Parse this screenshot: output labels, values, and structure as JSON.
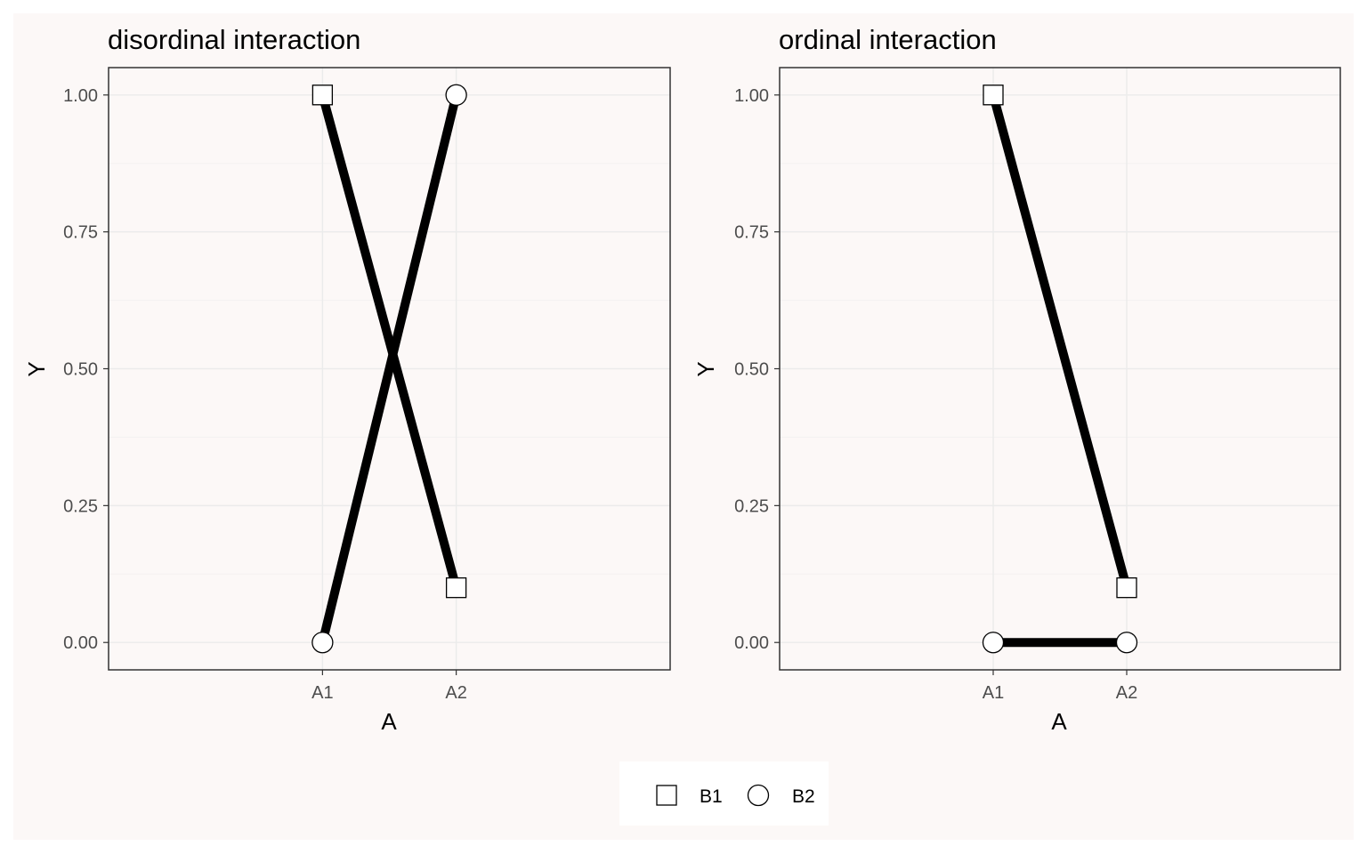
{
  "chart_data": [
    {
      "type": "line",
      "title": "disordinal interaction",
      "xlabel": "A",
      "ylabel": "Y",
      "categories": [
        "A1",
        "A2"
      ],
      "ylim": [
        -0.05,
        1.05
      ],
      "yticks": [
        0,
        0.25,
        0.5,
        0.75,
        1
      ],
      "ytick_labels": [
        "0.00",
        "0.25",
        "0.50",
        "0.75",
        "1.00"
      ],
      "grid": true,
      "series": [
        {
          "name": "B1",
          "shape": "square",
          "values": [
            1.0,
            0.1
          ]
        },
        {
          "name": "B2",
          "shape": "circle",
          "values": [
            0.0,
            1.0
          ]
        }
      ]
    },
    {
      "type": "line",
      "title": "ordinal interaction",
      "xlabel": "A",
      "ylabel": "Y",
      "categories": [
        "A1",
        "A2"
      ],
      "ylim": [
        -0.05,
        1.05
      ],
      "yticks": [
        0,
        0.25,
        0.5,
        0.75,
        1
      ],
      "ytick_labels": [
        "0.00",
        "0.25",
        "0.50",
        "0.75",
        "1.00"
      ],
      "grid": true,
      "series": [
        {
          "name": "B1",
          "shape": "square",
          "values": [
            1.0,
            0.1
          ]
        },
        {
          "name": "B2",
          "shape": "circle",
          "values": [
            0.0,
            0.0
          ]
        }
      ]
    }
  ],
  "legend": {
    "placement": "bottom",
    "items": [
      {
        "label": "B1",
        "shape": "square"
      },
      {
        "label": "B2",
        "shape": "circle"
      }
    ]
  },
  "colors": {
    "background": "#fcf8f7",
    "panel": "#fcf8f7",
    "grid_major": "#ebebeb",
    "grid_minor": "#f3f1f1",
    "line": "#000000",
    "marker_fill": "#ffffff",
    "legend_background": "#ffffff"
  }
}
